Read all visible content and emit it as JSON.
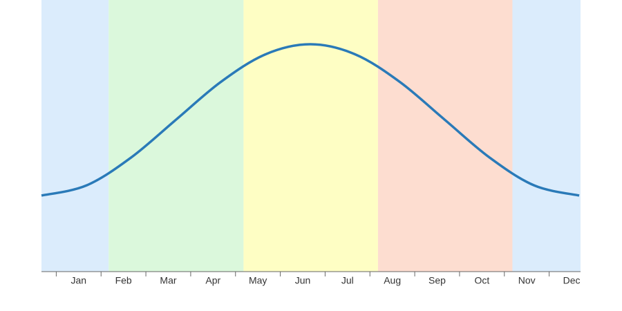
{
  "chart_data": {
    "type": "line",
    "categories": [
      "Jan",
      "Feb",
      "Mar",
      "Apr",
      "May",
      "Jun",
      "Jul",
      "Aug",
      "Sep",
      "Oct",
      "Nov",
      "Dec"
    ],
    "xlim": [
      -0.33,
      11.7
    ],
    "xticks": [
      0,
      1,
      2,
      3,
      4,
      5,
      6,
      7,
      8,
      9,
      10,
      11
    ],
    "ylim": [
      0,
      100
    ],
    "bands": [
      {
        "from": -0.33,
        "to": 1.17,
        "color": "#dbecfc"
      },
      {
        "from": 1.17,
        "to": 4.18,
        "color": "#dbf8dc"
      },
      {
        "from": 4.18,
        "to": 7.18,
        "color": "#fefec4"
      },
      {
        "from": 7.18,
        "to": 10.18,
        "color": "#fdddd0"
      },
      {
        "from": 10.18,
        "to": 11.7,
        "color": "#dbecfc"
      }
    ],
    "series": [
      {
        "color": "#2a7ab8",
        "x": [
          -0.33,
          0.67,
          1.67,
          2.67,
          3.67,
          4.67,
          5.67,
          6.67,
          7.67,
          8.67,
          9.67,
          10.67,
          11.67
        ],
        "values": [
          28,
          31.7,
          42,
          55.9,
          69.8,
          80,
          83.7,
          80,
          69.8,
          55.9,
          42,
          31.7,
          28
        ]
      }
    ]
  }
}
